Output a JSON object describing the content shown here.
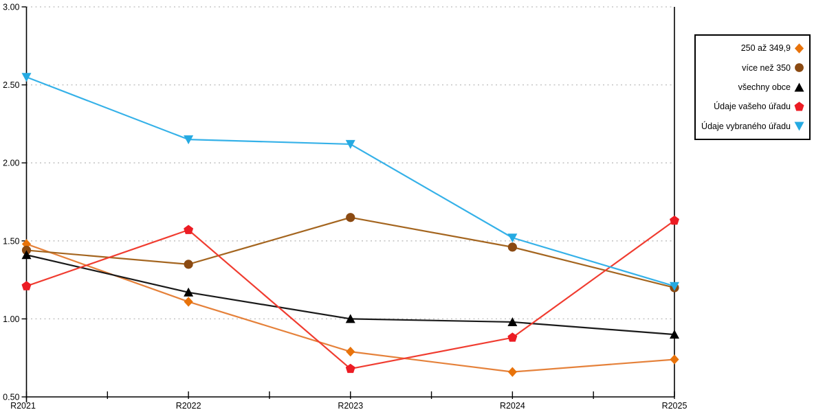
{
  "chart_data": {
    "type": "line",
    "x_categories": [
      "R2021",
      "R2022",
      "R2023",
      "R2024",
      "R2025"
    ],
    "ylim": [
      0.5,
      3.0
    ],
    "ytick_step": 0.5,
    "ytick_labels": [
      "0.50",
      "1.00",
      "1.50",
      "2.00",
      "2.50",
      "3.00"
    ],
    "grid": "horizontal-dotted",
    "legend_position": "outside-top-right",
    "axis_color": "#000000",
    "grid_color": "#bbbbbb",
    "series": [
      {
        "name": "250 až 349,9",
        "marker": "diamond",
        "color": "#E5813A",
        "marker_color": "#E8730B",
        "values": [
          1.48,
          1.11,
          0.79,
          0.66,
          0.74
        ]
      },
      {
        "name": "více než 350",
        "marker": "circle",
        "color": "#A4651F",
        "marker_color": "#8B4A12",
        "values": [
          1.44,
          1.35,
          1.65,
          1.46,
          1.2
        ]
      },
      {
        "name": "všechny obce",
        "marker": "triangle-up",
        "color": "#1A1A1A",
        "marker_color": "#000000",
        "values": [
          1.41,
          1.17,
          1.0,
          0.98,
          0.9
        ]
      },
      {
        "name": "Údaje vašeho úřadu",
        "marker": "pentagon",
        "color": "#F03C30",
        "marker_color": "#EC1C24",
        "values": [
          1.21,
          1.57,
          0.68,
          0.88,
          1.63
        ]
      },
      {
        "name": "Údaje vybraného úřadu",
        "marker": "triangle-down",
        "color": "#35B1E8",
        "marker_color": "#25AAE2",
        "values": [
          2.55,
          2.15,
          2.12,
          1.52,
          1.21
        ]
      }
    ]
  }
}
